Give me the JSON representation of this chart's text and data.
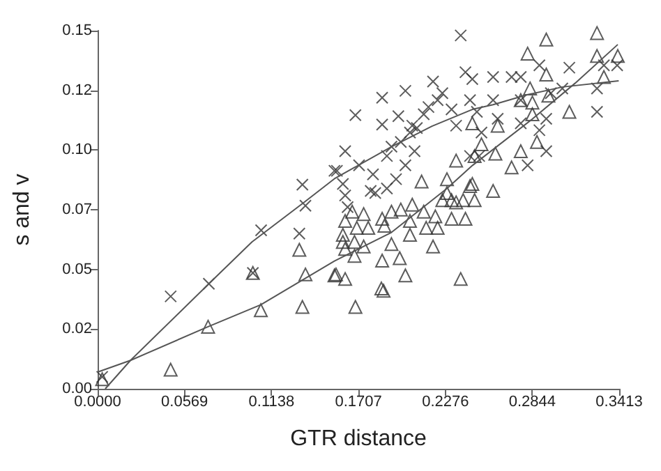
{
  "chart_data": {
    "type": "scatter",
    "xlabel": "GTR distance",
    "ylabel": "s and v",
    "xlim": [
      0,
      0.3413
    ],
    "xticks": [
      {
        "value": 0,
        "label": "0.0000"
      },
      0.0569,
      0.1138,
      0.1707,
      0.2276,
      0.2844,
      0.3413
    ],
    "ylim": [
      0,
      0.15
    ],
    "yticks": [
      {
        "value": 0,
        "label": "0.00"
      },
      {
        "value": 0.025,
        "label": "0.02"
      },
      {
        "value": 0.05,
        "label": "0.05"
      },
      {
        "value": 0.075,
        "label": "0.07"
      },
      {
        "value": 0.1,
        "label": "0.10"
      },
      {
        "value": 0.125,
        "label": "0.12"
      },
      {
        "value": 0.15,
        "label": "0.15"
      }
    ],
    "grid": false,
    "series": [
      {
        "marker": "cross",
        "color": "#333333",
        "x": [
          0.003,
          0.0478,
          0.0728,
          0.107,
          0.1016,
          0.134,
          0.136,
          0.132,
          0.155,
          0.2376,
          0.2407,
          0.2195,
          0.2014,
          0.1862,
          0.1687,
          0.1862,
          0.1968,
          0.2059,
          0.162,
          0.1566,
          0.1605,
          0.162,
          0.1636,
          0.1711,
          0.1802,
          0.1817,
          0.1893,
          0.1953,
          0.1893,
          0.1923,
          0.1984,
          0.2044,
          0.2089,
          0.2134,
          0.2165,
          0.2225,
          0.2256,
          0.2316,
          0.2346,
          0.2437,
          0.2074,
          0.2014,
          0.2437,
          0.1787,
          0.2452,
          0.2588,
          0.2709,
          0.2769,
          0.2588,
          0.2482,
          0.2618,
          0.2769,
          0.2512,
          0.2497,
          0.2814,
          0.2936,
          0.2891,
          0.2936,
          0.2891,
          0.3087,
          0.2966,
          0.3041,
          0.3268,
          0.3268,
          0.3313,
          0.34,
          0.2769
        ],
        "values": [
          0.005,
          0.0387,
          0.044,
          0.0664,
          0.0485,
          0.0855,
          0.0767,
          0.065,
          0.0913,
          0.148,
          0.1326,
          0.1287,
          0.1248,
          0.1219,
          0.1146,
          0.1107,
          0.1142,
          0.1102,
          0.0995,
          0.0913,
          0.0858,
          0.081,
          0.0761,
          0.0936,
          0.0898,
          0.082,
          0.0839,
          0.0878,
          0.0975,
          0.1014,
          0.1034,
          0.1073,
          0.1092,
          0.115,
          0.118,
          0.1209,
          0.1238,
          0.117,
          0.1102,
          0.1209,
          0.0995,
          0.0936,
          0.0975,
          0.0829,
          0.1297,
          0.1306,
          0.1306,
          0.1306,
          0.1209,
          0.116,
          0.1131,
          0.1112,
          0.1073,
          0.0975,
          0.0936,
          0.0995,
          0.1083,
          0.1131,
          0.1355,
          0.1345,
          0.1238,
          0.1258,
          0.1258,
          0.116,
          0.1355,
          0.1355,
          0.1209
        ]
      },
      {
        "marker": "triangle",
        "color": "#333333",
        "x": [
          0.003,
          0.0478,
          0.0723,
          0.1016,
          0.1068,
          0.132,
          0.136,
          0.134,
          0.155,
          0.3268,
          0.2936,
          0.2814,
          0.3268,
          0.3404,
          0.2936,
          0.3313,
          0.283,
          0.2769,
          0.2845,
          0.295,
          0.3087,
          0.2845,
          0.2452,
          0.2618,
          0.2512,
          0.2875,
          0.2769,
          0.2709,
          0.2603,
          0.2467,
          0.2346,
          0.2452,
          0.2588,
          0.2316,
          0.2392,
          0.2467,
          0.2316,
          0.2407,
          0.2376,
          0.212,
          0.2286,
          0.2286,
          0.2437,
          0.2256,
          0.2346,
          0.2059,
          0.1984,
          0.1923,
          0.2134,
          0.1862,
          0.1741,
          0.1666,
          0.162,
          0.1696,
          0.1771,
          0.1877,
          0.2044,
          0.221,
          0.2225,
          0.215,
          0.2044,
          0.1605,
          0.1605,
          0.1681,
          0.1741,
          0.162,
          0.1923,
          0.2195,
          0.1681,
          0.1862,
          0.1977,
          0.156,
          0.162,
          0.2014,
          0.1857,
          0.1871,
          0.1687
        ],
        "values": [
          0.004,
          0.008,
          0.026,
          0.0485,
          0.0329,
          0.0582,
          0.0479,
          0.0343,
          0.0475,
          0.149,
          0.1463,
          0.1404,
          0.1394,
          0.1394,
          0.1316,
          0.1306,
          0.1258,
          0.1209,
          0.1199,
          0.1228,
          0.116,
          0.115,
          0.1112,
          0.1102,
          0.1024,
          0.1034,
          0.0995,
          0.0927,
          0.0985,
          0.0975,
          0.0956,
          0.0858,
          0.0829,
          0.079,
          0.079,
          0.079,
          0.0712,
          0.0712,
          0.046,
          0.0868,
          0.0878,
          0.082,
          0.0849,
          0.079,
          0.0781,
          0.0771,
          0.0751,
          0.0742,
          0.0742,
          0.0712,
          0.0732,
          0.0742,
          0.0703,
          0.0674,
          0.0674,
          0.0683,
          0.0703,
          0.0722,
          0.0674,
          0.0674,
          0.0645,
          0.0645,
          0.0615,
          0.0615,
          0.0596,
          0.0586,
          0.0606,
          0.0596,
          0.0557,
          0.0537,
          0.0547,
          0.0479,
          0.046,
          0.0475,
          0.042,
          0.0411,
          0.0343
        ]
      },
      {
        "type": "line",
        "marker": "none",
        "color": "#555555",
        "x": [
          0.005,
          0.0215,
          0.0728,
          0.101,
          0.1349,
          0.155,
          0.1923,
          0.2188,
          0.2452,
          0.2588,
          0.2815,
          0.3041,
          0.341
        ],
        "values": [
          0,
          0.0119,
          0.044,
          0.0615,
          0.078,
          0.088,
          0.1014,
          0.11,
          0.117,
          0.119,
          0.1232,
          0.1264,
          0.129
        ]
      },
      {
        "type": "line",
        "marker": "none",
        "color": "#555555",
        "x": [
          0,
          0.0215,
          0.0723,
          0.1068,
          0.155,
          0.1923,
          0.2286,
          0.2452,
          0.2845,
          0.3125,
          0.3404
        ],
        "values": [
          0.007,
          0.0119,
          0.026,
          0.0352,
          0.0535,
          0.0655,
          0.0839,
          0.0935,
          0.113,
          0.128,
          0.1442
        ]
      }
    ]
  }
}
